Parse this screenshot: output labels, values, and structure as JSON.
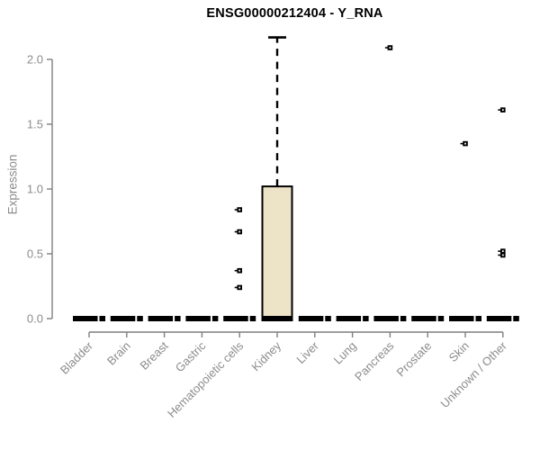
{
  "chart_data": {
    "type": "boxplot",
    "title": "ENSG00000212404 - Y_RNA",
    "ylabel": "Expression",
    "xlabel": "",
    "ylim": [
      0,
      2.2
    ],
    "yticks": [
      0.0,
      0.5,
      1.0,
      1.5,
      2.0
    ],
    "grid": false,
    "legend": "none",
    "categories": [
      "Bladder",
      "Brain",
      "Breast",
      "Gastric",
      "Hematopoietic cells",
      "Kidney",
      "Liver",
      "Lung",
      "Pancreas",
      "Prostate",
      "Skin",
      "Unknown / Other"
    ],
    "boxes": [
      {
        "category": "Bladder",
        "low": 0,
        "q1": 0,
        "median": 0,
        "q3": 0,
        "high": 0,
        "outliers": []
      },
      {
        "category": "Brain",
        "low": 0,
        "q1": 0,
        "median": 0,
        "q3": 0,
        "high": 0,
        "outliers": []
      },
      {
        "category": "Breast",
        "low": 0,
        "q1": 0,
        "median": 0,
        "q3": 0,
        "high": 0,
        "outliers": []
      },
      {
        "category": "Gastric",
        "low": 0,
        "q1": 0,
        "median": 0,
        "q3": 0,
        "high": 0,
        "outliers": []
      },
      {
        "category": "Hematopoietic cells",
        "low": 0,
        "q1": 0,
        "median": 0,
        "q3": 0,
        "high": 0,
        "outliers": [
          0.84,
          0.67,
          0.37,
          0.24
        ]
      },
      {
        "category": "Kidney",
        "low": 0,
        "q1": 0,
        "median": 0,
        "q3": 1.02,
        "high": 2.17,
        "outliers": []
      },
      {
        "category": "Liver",
        "low": 0,
        "q1": 0,
        "median": 0,
        "q3": 0,
        "high": 0,
        "outliers": []
      },
      {
        "category": "Lung",
        "low": 0,
        "q1": 0,
        "median": 0,
        "q3": 0,
        "high": 0,
        "outliers": []
      },
      {
        "category": "Pancreas",
        "low": 0,
        "q1": 0,
        "median": 0,
        "q3": 0,
        "high": 0,
        "outliers": [
          2.09
        ]
      },
      {
        "category": "Prostate",
        "low": 0,
        "q1": 0,
        "median": 0,
        "q3": 0,
        "high": 0,
        "outliers": []
      },
      {
        "category": "Skin",
        "low": 0,
        "q1": 0,
        "median": 0,
        "q3": 0,
        "high": 0,
        "outliers": []
      },
      {
        "category": "Unknown / Other",
        "low": 0,
        "q1": 0,
        "median": 0,
        "q3": 0,
        "high": 0,
        "outliers": [
          1.61,
          0.52,
          0.49
        ]
      }
    ],
    "skin_outliers_note": "Skin has outlier 1.35",
    "extra_outliers": [
      {
        "category": "Skin",
        "value": 1.35
      }
    ],
    "colors": {
      "background": "#ffffff",
      "box_fill": "#EDE3C7",
      "box_border": "#000000",
      "median": "#000000",
      "whisker": "#000000",
      "outlier": "#000000",
      "axis_line": "#7f7f7f",
      "tick_text": "#8c8c8c",
      "title_text": "#000000"
    }
  }
}
